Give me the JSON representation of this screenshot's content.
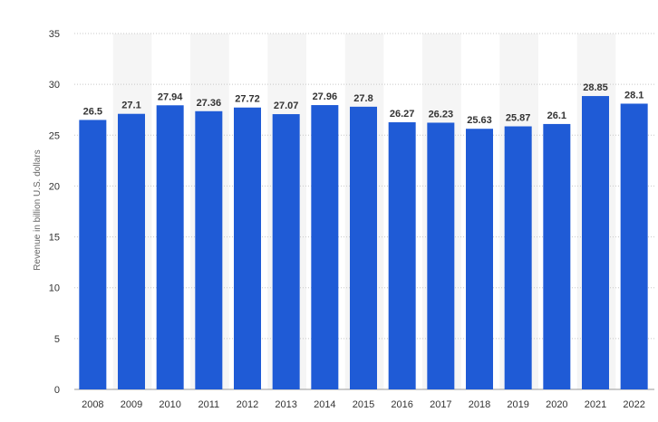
{
  "chart_data": {
    "type": "bar",
    "title": "",
    "xlabel": "",
    "ylabel": "Revenue in billion U.S. dollars",
    "categories": [
      "2008",
      "2009",
      "2010",
      "2011",
      "2012",
      "2013",
      "2014",
      "2015",
      "2016",
      "2017",
      "2018",
      "2019",
      "2020",
      "2021",
      "2022"
    ],
    "values": [
      26.5,
      27.1,
      27.94,
      27.36,
      27.72,
      27.07,
      27.96,
      27.8,
      26.27,
      26.23,
      25.63,
      25.87,
      26.1,
      28.85,
      28.1
    ],
    "value_labels": [
      "26.5",
      "27.1",
      "27.94",
      "27.36",
      "27.72",
      "27.07",
      "27.96",
      "27.8",
      "26.27",
      "26.23",
      "25.63",
      "25.87",
      "26.1",
      "28.85",
      "28.1"
    ],
    "yticks": [
      "0",
      "5",
      "10",
      "15",
      "20",
      "25",
      "30",
      "35"
    ],
    "ylim": [
      0,
      35
    ],
    "grid": true,
    "legend": "none",
    "colors": {
      "bar": "#1f5bd6",
      "grid": "#c8c8c8",
      "band": "#f5f5f5",
      "text": "#333333",
      "axis_title": "#666666"
    }
  }
}
